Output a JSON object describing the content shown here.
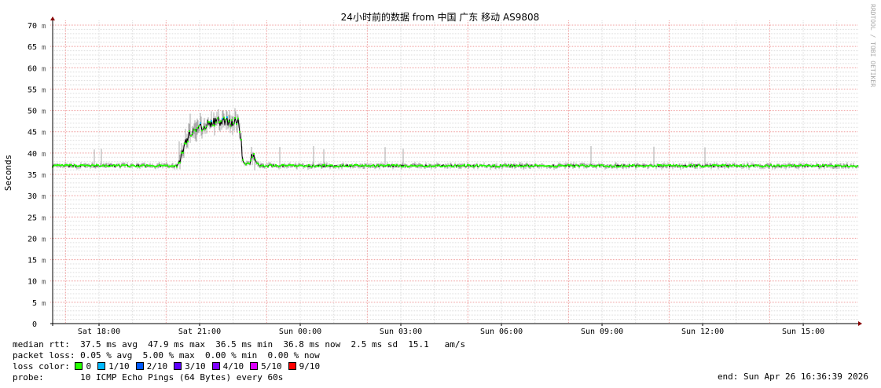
{
  "chart_data": {
    "type": "line",
    "title": "24小时前的数据 from  中国 广东 移动 AS9808",
    "ylabel": "Seconds",
    "ylim": [
      0,
      70
    ],
    "yticks": [
      "0",
      "5 m",
      "10 m",
      "15 m",
      "20 m",
      "25 m",
      "30 m",
      "35 m",
      "40 m",
      "45 m",
      "50 m",
      "55 m",
      "60 m",
      "65 m",
      "70 m"
    ],
    "xlim": [
      "Sat 16:37",
      "Sun 16:37"
    ],
    "xticks": [
      "Sat 18:00",
      "Sat 21:00",
      "Sun 00:00",
      "Sun 03:00",
      "Sun 06:00",
      "Sun 09:00",
      "Sun 12:00",
      "Sun 15:00"
    ],
    "grid": true,
    "watermark": "RRDTOOL / TOBI OETIKER",
    "series": [
      {
        "name": "median rtt (ms)",
        "points_hours_since_sat_0000": [
          [
            16.62,
            37
          ],
          [
            20.35,
            37
          ],
          [
            20.45,
            39.5
          ],
          [
            20.6,
            43
          ],
          [
            20.75,
            45
          ],
          [
            21.0,
            46
          ],
          [
            21.3,
            47
          ],
          [
            21.6,
            47.5
          ],
          [
            22.15,
            47.3
          ],
          [
            22.22,
            44
          ],
          [
            22.3,
            37.5
          ],
          [
            22.5,
            37.5
          ],
          [
            22.58,
            40.5
          ],
          [
            22.68,
            38
          ],
          [
            22.8,
            37
          ],
          [
            40.62,
            37
          ]
        ]
      }
    ]
  },
  "stats": {
    "median_rtt": "median rtt:  37.5 ms avg  47.9 ms max  36.5 ms min  36.8 ms now  2.5 ms sd  15.1   am/s",
    "packet_loss": "packet loss: 0.05 % avg  5.00 % max  0.00 % min  0.00 % now",
    "loss_color_label": "loss color: ",
    "loss_colors": [
      {
        "label": "0",
        "color": "#26ff00"
      },
      {
        "label": "1/10",
        "color": "#00b8ff"
      },
      {
        "label": "2/10",
        "color": "#0059ff"
      },
      {
        "label": "3/10",
        "color": "#5e00ff"
      },
      {
        "label": "4/10",
        "color": "#7e00ff"
      },
      {
        "label": "5/10",
        "color": "#dd00ff"
      },
      {
        "label": "9/10",
        "color": "#ff0000"
      }
    ],
    "probe": "probe:       10 ICMP Echo Pings (64 Bytes) every 60s",
    "end": "end: Sun Apr 26 16:36:39 2026"
  }
}
